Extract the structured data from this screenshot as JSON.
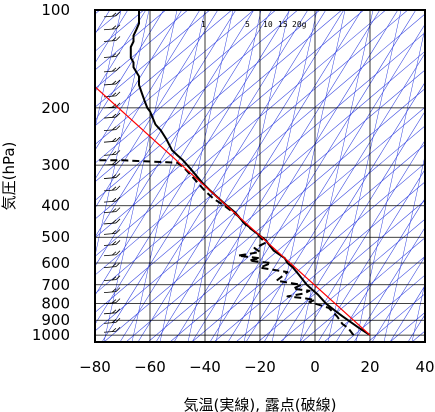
{
  "chart_data": {
    "type": "line",
    "title": "",
    "xlabel": "気温(実線), 露点(破線)",
    "ylabel": "気圧(hPa)",
    "x_axis": {
      "min": -80,
      "max": 40,
      "ticks": [
        -80,
        -60,
        -40,
        -20,
        0,
        20,
        40
      ]
    },
    "y_axis": {
      "scale": "log",
      "min": 100,
      "max": 1050,
      "ticks": [
        100,
        200,
        300,
        400,
        500,
        600,
        700,
        800,
        900,
        1000
      ]
    },
    "mixing_ratio_labels": [
      "1",
      "5",
      "10",
      "15",
      "20g"
    ],
    "grid": true,
    "series": [
      {
        "role": "temperature",
        "style": "solid",
        "color": "#000000",
        "points": [
          [
            20,
            1000
          ],
          [
            18,
            975
          ],
          [
            16,
            950
          ],
          [
            14,
            925
          ],
          [
            12,
            900
          ],
          [
            10,
            875
          ],
          [
            8,
            850
          ],
          [
            6,
            825
          ],
          [
            4,
            800
          ],
          [
            1,
            750
          ],
          [
            -1,
            725
          ],
          [
            -3,
            700
          ],
          [
            -6,
            650
          ],
          [
            -8,
            620
          ],
          [
            -10,
            600
          ],
          [
            -11,
            580
          ],
          [
            -15,
            550
          ],
          [
            -18,
            510
          ],
          [
            -22,
            480
          ],
          [
            -26,
            450
          ],
          [
            -29,
            420
          ],
          [
            -32,
            400
          ],
          [
            -35,
            380
          ],
          [
            -38,
            360
          ],
          [
            -41,
            340
          ],
          [
            -45,
            310
          ],
          [
            -48,
            290
          ],
          [
            -50,
            280
          ],
          [
            -52,
            270
          ],
          [
            -54,
            250
          ],
          [
            -56,
            235
          ],
          [
            -58,
            225
          ],
          [
            -59,
            215
          ],
          [
            -60,
            205
          ],
          [
            -61,
            200
          ],
          [
            -62,
            190
          ],
          [
            -63,
            180
          ],
          [
            -64,
            170
          ],
          [
            -64,
            160
          ],
          [
            -65,
            155
          ],
          [
            -66,
            150
          ],
          [
            -66,
            145
          ],
          [
            -67,
            140
          ],
          [
            -67,
            130
          ],
          [
            -66,
            125
          ],
          [
            -66,
            120
          ],
          [
            -65,
            115
          ],
          [
            -64,
            110
          ],
          [
            -64,
            104
          ],
          [
            -64,
            100
          ]
        ]
      },
      {
        "role": "dewpoint",
        "style": "dashed",
        "color": "#000000",
        "points": [
          [
            14,
            1000
          ],
          [
            13,
            975
          ],
          [
            12,
            950
          ],
          [
            10,
            925
          ],
          [
            9,
            900
          ],
          [
            8,
            875
          ],
          [
            5,
            825
          ],
          [
            -2,
            790
          ],
          [
            0,
            780
          ],
          [
            -4,
            770
          ],
          [
            -10,
            760
          ],
          [
            -4,
            745
          ],
          [
            -2,
            730
          ],
          [
            -8,
            720
          ],
          [
            -5,
            700
          ],
          [
            -14,
            680
          ],
          [
            -10,
            640
          ],
          [
            -20,
            620
          ],
          [
            -16,
            600
          ],
          [
            -24,
            590
          ],
          [
            -20,
            580
          ],
          [
            -28,
            570
          ],
          [
            -20,
            555
          ],
          [
            -22,
            540
          ],
          [
            -18,
            520
          ],
          [
            -20,
            500
          ],
          [
            -22,
            480
          ],
          [
            -25,
            460
          ],
          [
            -28,
            430
          ],
          [
            -33,
            400
          ],
          [
            -37,
            380
          ],
          [
            -40,
            360
          ],
          [
            -44,
            330
          ],
          [
            -47,
            310
          ],
          [
            -50,
            295
          ],
          [
            -62,
            292
          ],
          [
            -70,
            290
          ],
          [
            -80,
            290
          ]
        ]
      },
      {
        "role": "reference",
        "style": "solid",
        "color": "#ff0000",
        "points": [
          [
            20,
            1000
          ],
          [
            -86,
            155
          ]
        ]
      }
    ]
  }
}
